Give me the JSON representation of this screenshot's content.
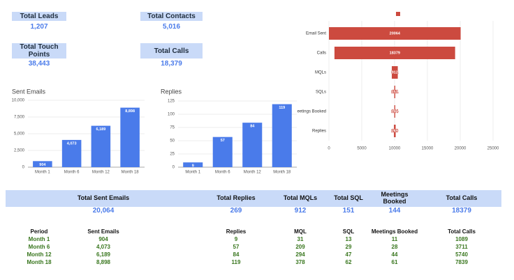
{
  "kpis": [
    {
      "label": "Total Leads",
      "value": "1,207"
    },
    {
      "label": "Total Contacts",
      "value": "5,016"
    },
    {
      "label": "Total Touch Points",
      "value": "38,443"
    },
    {
      "label": "Total Calls",
      "value": "18,379"
    }
  ],
  "chart_data": [
    {
      "type": "bar",
      "title": "Sent Emails",
      "categories": [
        "Month 1",
        "Month 6",
        "Month 12",
        "Month 18"
      ],
      "values": [
        904,
        4073,
        6189,
        8898
      ],
      "value_labels": [
        "904",
        "4,073",
        "6,189",
        "8,898"
      ],
      "color": "#4a7bea",
      "ylim": [
        0,
        10000
      ],
      "yticks": [
        0,
        {
          "value": 2500,
          "label": "2,500"
        },
        {
          "value": 5000,
          "label": "5,000"
        },
        {
          "value": 7500,
          "label": "7,500"
        },
        {
          "value": 10000,
          "label": "10,000"
        }
      ],
      "grid": true
    },
    {
      "type": "bar",
      "title": "Replies",
      "categories": [
        "Month 1",
        "Month 6",
        "Month 12",
        "Month 18"
      ],
      "values": [
        9,
        57,
        84,
        119
      ],
      "color": "#4a7bea",
      "ylim": [
        0,
        125
      ],
      "yticks": [
        0,
        25,
        50,
        75,
        100,
        125
      ],
      "grid": true
    },
    {
      "type": "funnel",
      "categories": [
        "Email Sent",
        "Calls",
        "MQLs",
        "SQLs",
        "eetings Booked",
        "Replies"
      ],
      "values": [
        20064,
        18379,
        912,
        151,
        144,
        269
      ],
      "color": "#cc4a3f",
      "xlim": [
        0,
        25000
      ],
      "xticks": [
        0,
        5000,
        10000,
        15000,
        20000,
        25000
      ],
      "grid": true
    }
  ],
  "summary": [
    {
      "label": "Total Sent Emails",
      "value": "20,064"
    },
    {
      "label": "Total Replies",
      "value": "269"
    },
    {
      "label": "Total MQLs",
      "value": "912"
    },
    {
      "label": "Total SQL",
      "value": "151"
    },
    {
      "label": "Meetings Booked",
      "value": "144"
    },
    {
      "label": "Total Calls",
      "value": "18379"
    }
  ],
  "table": {
    "header": [
      "Period",
      "Sent Emails",
      "Replies",
      "MQL",
      "SQL",
      "Meetings Booked",
      "Total Calls"
    ],
    "rows": [
      [
        "Month 1",
        "904",
        "9",
        "31",
        "13",
        "11",
        "1089"
      ],
      [
        "Month 6",
        "4,073",
        "57",
        "209",
        "29",
        "28",
        "3711"
      ],
      [
        "Month 12",
        "6,189",
        "84",
        "294",
        "47",
        "44",
        "5740"
      ],
      [
        "Month 18",
        "8,898",
        "119",
        "378",
        "62",
        "61",
        "7839"
      ]
    ]
  }
}
